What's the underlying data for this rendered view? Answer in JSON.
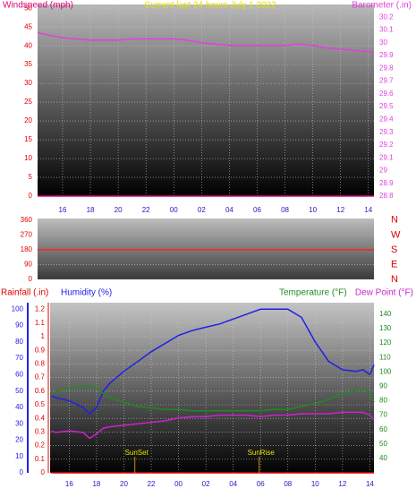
{
  "chart_data": [
    {
      "type": "line",
      "title": "Current last 24 hours July 1 2022",
      "x": [
        14.2,
        15,
        16,
        17,
        18,
        19,
        20,
        21,
        22,
        23,
        24,
        25,
        26,
        27,
        28,
        29,
        30,
        31,
        32,
        33,
        34,
        35,
        36,
        37,
        38,
        38.4
      ],
      "xlim": [
        14.2,
        38.4
      ],
      "xticks": [
        16,
        18,
        20,
        22,
        {
          "value": 24,
          "label": "00"
        },
        {
          "value": 26,
          "label": "02"
        },
        {
          "value": 28,
          "label": "04"
        },
        {
          "value": 30,
          "label": "06"
        },
        {
          "value": 32,
          "label": "08"
        },
        {
          "value": 34,
          "label": "10"
        },
        {
          "value": 36,
          "label": "12"
        },
        {
          "value": 38,
          "label": "14"
        }
      ],
      "ylim": [
        0,
        51
      ],
      "yticks": [
        0,
        5,
        10,
        15,
        20,
        25,
        30,
        35,
        40,
        45,
        50
      ],
      "y2lim": [
        28.8,
        30.3
      ],
      "y2ticks": [
        28.8,
        28.9,
        29,
        29.1,
        29.2,
        29.3,
        29.4,
        29.5,
        29.6,
        29.7,
        29.8,
        29.9,
        30,
        30.1,
        30.2
      ],
      "grid": true,
      "series": [
        {
          "name": "Windspeed (mph)",
          "color": "#e0007a",
          "axis": "y",
          "values": [
            0,
            0,
            0,
            0,
            0,
            0,
            0,
            0,
            0,
            0,
            0,
            0,
            0,
            0,
            0,
            0,
            0,
            0,
            0,
            0,
            0,
            0,
            0,
            0,
            0,
            0
          ]
        },
        {
          "name": "Barometer (.in)",
          "color": "#e040e0",
          "axis": "y2",
          "values": [
            30.08,
            30.06,
            30.04,
            30.03,
            30.02,
            30.02,
            30.02,
            30.03,
            30.03,
            30.03,
            30.03,
            30.02,
            30.0,
            29.99,
            29.98,
            29.98,
            29.98,
            29.98,
            29.98,
            29.99,
            29.98,
            29.96,
            29.95,
            29.94,
            29.93,
            29.93
          ]
        }
      ]
    },
    {
      "type": "line",
      "x": [
        14.2,
        38.4
      ],
      "xlim": [
        14.2,
        38.4
      ],
      "ylim": [
        0,
        370
      ],
      "yticks": [
        0,
        90,
        180,
        270,
        360
      ],
      "y2lim": [
        0,
        370
      ],
      "y2ticks": [
        {
          "value": 360,
          "label": "N"
        },
        {
          "value": 270,
          "label": "W"
        },
        {
          "value": 180,
          "label": "S"
        },
        {
          "value": 90,
          "label": "E"
        },
        {
          "value": 0,
          "label": "N"
        }
      ],
      "grid": true,
      "series": [
        {
          "color": "#ff2020",
          "axis": "y",
          "values": [
            180,
            180
          ]
        }
      ]
    },
    {
      "type": "line",
      "x": [
        14.7,
        15,
        16,
        17,
        17.5,
        18,
        18.5,
        19,
        20,
        21,
        22,
        23,
        24,
        25,
        26,
        27,
        28,
        29,
        30,
        31,
        32,
        33,
        34,
        35,
        36,
        37,
        37.5,
        38,
        38.3
      ],
      "xlim": [
        14.6,
        38.3
      ],
      "xticks": [
        16,
        18,
        20,
        22,
        {
          "value": 24,
          "label": "00"
        },
        {
          "value": 26,
          "label": "02"
        },
        {
          "value": 28,
          "label": "04"
        },
        {
          "value": 30,
          "label": "06"
        },
        {
          "value": 32,
          "label": "08"
        },
        {
          "value": 34,
          "label": "10"
        },
        {
          "value": 36,
          "label": "12"
        },
        {
          "value": 38,
          "label": "14"
        }
      ],
      "ylim": [
        0,
        1.25
      ],
      "yticks": [
        0,
        0.1,
        0.2,
        0.3,
        0.4,
        0.5,
        0.6,
        0.7,
        0.8,
        0.9,
        1,
        1.1,
        1.2
      ],
      "y2lim": [
        30,
        148
      ],
      "y2ticks": [
        40,
        50,
        60,
        70,
        80,
        90,
        100,
        110,
        120,
        130,
        140
      ],
      "y3lim": [
        0,
        104
      ],
      "y3ticks": [
        0,
        10,
        20,
        30,
        40,
        50,
        60,
        70,
        80,
        90,
        100
      ],
      "grid": true,
      "series": [
        {
          "name": "Rainfall (.in)",
          "color": "#e00000",
          "axis": "y",
          "values": [
            0,
            0,
            0,
            0,
            0,
            0,
            0,
            0,
            0,
            0,
            0,
            0,
            0,
            0,
            0,
            0,
            0,
            0,
            0,
            0,
            0,
            0,
            0,
            0,
            0,
            0,
            0,
            0,
            0
          ]
        },
        {
          "name": "Humidity (%)",
          "color": "#2020e8",
          "axis": "y3",
          "values": [
            47,
            46,
            44,
            40,
            36,
            40,
            50,
            55,
            62,
            68,
            74,
            79,
            84,
            87,
            89,
            91,
            94,
            97,
            100,
            100,
            100,
            95,
            80,
            68,
            63,
            62,
            63,
            60,
            66
          ]
        },
        {
          "name": "Temperature (°F)",
          "color": "#208a20",
          "axis": "y2",
          "values": [
            85,
            86,
            89,
            90,
            90,
            89,
            85,
            82,
            79,
            76,
            75,
            74,
            74,
            73,
            73,
            73,
            73,
            73,
            73,
            74,
            74,
            76,
            78,
            81,
            85,
            87,
            88,
            86,
            79
          ]
        },
        {
          "name": "Dew Point (°F)",
          "color": "#d020d0",
          "axis": "y2",
          "values": [
            59,
            58,
            59,
            58,
            54,
            57,
            61,
            62,
            63,
            64,
            65,
            66,
            68,
            69,
            69,
            70,
            70,
            70,
            69,
            70,
            70,
            71,
            71,
            71,
            72,
            72,
            72,
            70,
            67
          ]
        }
      ],
      "annotations": [
        {
          "text": "SunSet",
          "x": 20.8
        },
        {
          "text": "SunRise",
          "x": 29.9
        }
      ]
    }
  ]
}
